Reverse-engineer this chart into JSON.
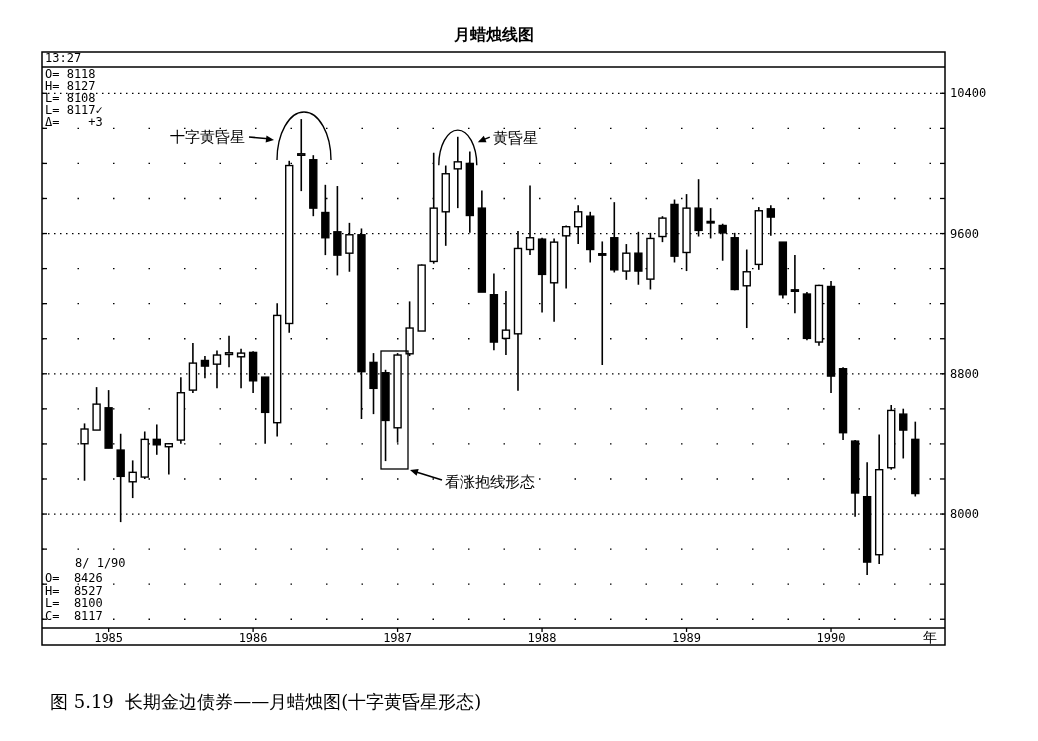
{
  "chart_data": {
    "type": "candlestick",
    "title": "月蜡烛线图",
    "xlabel": "年",
    "x": [
      "1984-11",
      "1984-12",
      "1985-01",
      "1985-02",
      "1985-03",
      "1985-04",
      "1985-05",
      "1985-06",
      "1985-07",
      "1985-08",
      "1985-09",
      "1985-10",
      "1985-11",
      "1985-12",
      "1986-01",
      "1986-02",
      "1986-03",
      "1986-04",
      "1986-05",
      "1986-06",
      "1986-07",
      "1986-08",
      "1986-09",
      "1986-10",
      "1986-11",
      "1986-12",
      "1987-01",
      "1987-02",
      "1987-03",
      "1987-04",
      "1987-05",
      "1987-06",
      "1987-07",
      "1987-08",
      "1987-09",
      "1987-10",
      "1987-11",
      "1987-12",
      "1988-01",
      "1988-02",
      "1988-03",
      "1988-04",
      "1988-05",
      "1988-06",
      "1988-07",
      "1988-08",
      "1988-09",
      "1988-10",
      "1988-11",
      "1988-12",
      "1989-01",
      "1989-02",
      "1989-03",
      "1989-04",
      "1989-05",
      "1989-06",
      "1989-07",
      "1989-08",
      "1989-09",
      "1989-10",
      "1989-11",
      "1989-12",
      "1990-01",
      "1990-02",
      "1990-03",
      "1990-04",
      "1990-05",
      "1990-06",
      "1990-07",
      "1990-08"
    ],
    "ohlc": [
      [
        8401,
        8517,
        8190,
        8485
      ],
      [
        8479,
        8724,
        8479,
        8627
      ],
      [
        8606,
        8707,
        8376,
        8376
      ],
      [
        8365,
        8458,
        7954,
        8215
      ],
      [
        8184,
        8306,
        8091,
        8238
      ],
      [
        8211,
        8471,
        8200,
        8426
      ],
      [
        8426,
        8511,
        8338,
        8395
      ],
      [
        8384,
        8405,
        8226,
        8401
      ],
      [
        8422,
        8781,
        8401,
        8692
      ],
      [
        8707,
        8975,
        8690,
        8861
      ],
      [
        8876,
        8901,
        8774,
        8844
      ],
      [
        8855,
        8933,
        8717,
        8907
      ],
      [
        8910,
        9017,
        8838,
        8920
      ],
      [
        8897,
        8943,
        8717,
        8918
      ],
      [
        8922,
        8928,
        8690,
        8760
      ],
      [
        8781,
        8781,
        8401,
        8580
      ],
      [
        8521,
        9203,
        8443,
        9133
      ],
      [
        9087,
        10015,
        9034,
        9988
      ],
      [
        10050,
        10253,
        9842,
        10055
      ],
      [
        10021,
        10047,
        9699,
        9745
      ],
      [
        9720,
        9878,
        9477,
        9576
      ],
      [
        9610,
        9871,
        9361,
        9477
      ],
      [
        9488,
        9661,
        9382,
        9593
      ],
      [
        9593,
        9629,
        8542,
        8812
      ],
      [
        8865,
        8918,
        8570,
        8717
      ],
      [
        8806,
        8823,
        8302,
        8534
      ],
      [
        8492,
        8918,
        8407,
        8907
      ],
      [
        8914,
        9213,
        8901,
        9061
      ],
      [
        9044,
        9424,
        9044,
        9420
      ],
      [
        9441,
        10061,
        9428,
        9745
      ],
      [
        9724,
        9988,
        9530,
        9941
      ],
      [
        9969,
        10152,
        9745,
        10009
      ],
      [
        10000,
        10068,
        9604,
        9703
      ],
      [
        9745,
        9846,
        9266,
        9266
      ],
      [
        9251,
        9372,
        8935,
        8981
      ],
      [
        9002,
        9272,
        8907,
        9049
      ],
      [
        9028,
        9614,
        8703,
        9515
      ],
      [
        9509,
        9874,
        9477,
        9576
      ],
      [
        9568,
        9576,
        9150,
        9367
      ],
      [
        9319,
        9572,
        9097,
        9551
      ],
      [
        9587,
        9646,
        9287,
        9639
      ],
      [
        9639,
        9762,
        9540,
        9724
      ],
      [
        9699,
        9724,
        9435,
        9509
      ],
      [
        9485,
        9555,
        8850,
        9481
      ],
      [
        9576,
        9779,
        9378,
        9393
      ],
      [
        9386,
        9540,
        9336,
        9488
      ],
      [
        9488,
        9610,
        9308,
        9386
      ],
      [
        9340,
        9604,
        9281,
        9572
      ],
      [
        9583,
        9699,
        9551,
        9688
      ],
      [
        9766,
        9794,
        9435,
        9471
      ],
      [
        9492,
        9825,
        9386,
        9745
      ],
      [
        9745,
        9910,
        9583,
        9618
      ],
      [
        9669,
        9745,
        9572,
        9663
      ],
      [
        9646,
        9656,
        9445,
        9604
      ],
      [
        9576,
        9604,
        9276,
        9281
      ],
      [
        9302,
        9509,
        9061,
        9382
      ],
      [
        9424,
        9751,
        9393,
        9730
      ],
      [
        9741,
        9762,
        9587,
        9694
      ],
      [
        9551,
        9551,
        9230,
        9251
      ],
      [
        9279,
        9477,
        9146,
        9272
      ],
      [
        9255,
        9266,
        8992,
        9002
      ],
      [
        8981,
        9308,
        8960,
        9304
      ],
      [
        9298,
        9329,
        8690,
        8787
      ],
      [
        8829,
        8838,
        8422,
        8464
      ],
      [
        8416,
        8422,
        7985,
        8120
      ],
      [
        8099,
        8295,
        7652,
        7726
      ],
      [
        7768,
        8454,
        7715,
        8253
      ],
      [
        8264,
        8622,
        8253,
        8591
      ],
      [
        8570,
        8601,
        8317,
        8479
      ],
      [
        8426,
        8527,
        8100,
        8117
      ]
    ],
    "xlim": [
      "1984-07-15",
      "1990-10-15"
    ],
    "xticks": [
      {
        "value": "1985-01",
        "label": "1985"
      },
      {
        "value": "1986-01",
        "label": "1986"
      },
      {
        "value": "1987-01",
        "label": "1987"
      },
      {
        "value": "1988-01",
        "label": "1988"
      },
      {
        "value": "1989-01",
        "label": "1989"
      },
      {
        "value": "1990-01",
        "label": "1990"
      }
    ],
    "ylim": [
      7350,
      10550
    ],
    "yticks": [
      {
        "value": 7400,
        "label": null
      },
      {
        "value": 7600,
        "label": null
      },
      {
        "value": 7800,
        "label": null
      },
      8000,
      {
        "value": 8200,
        "label": null
      },
      {
        "value": 8400,
        "label": null
      },
      {
        "value": 8600,
        "label": null
      },
      8800,
      {
        "value": 9000,
        "label": null
      },
      {
        "value": 9200,
        "label": null
      },
      {
        "value": 9400,
        "label": null
      },
      9600,
      {
        "value": 9800,
        "label": null
      },
      {
        "value": 10000,
        "label": null
      },
      {
        "value": 10200,
        "label": null
      },
      10400
    ],
    "grid": "y",
    "annotations": [
      "13:27",
      "O= 8118",
      "H= 8127",
      "L= 8108",
      "L= 8117✓",
      "Δ=    +3",
      "8/ 1/90",
      "O=  8426",
      "H=  8527",
      "L=  8100",
      "C=  8117",
      "图 5.19  长期金边债券——月蜡烛图(十字黄昏星形态)",
      "十字黄昏星",
      "看涨抱线形态",
      {
        "text": "黄昏星",
        "x": "1987-06",
        "y": 10150
      }
    ]
  }
}
